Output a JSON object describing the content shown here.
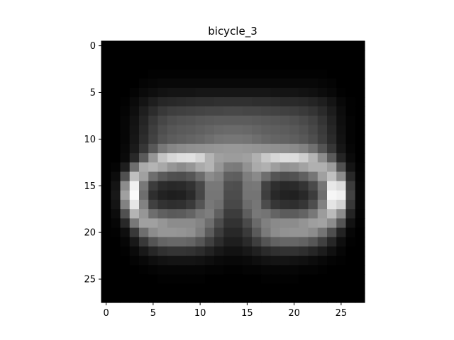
{
  "chart_data": {
    "type": "heatmap",
    "title": "bicycle_3",
    "xlabel": "",
    "ylabel": "",
    "colormap": "gray",
    "value_range": [
      0,
      255
    ],
    "rows": 28,
    "cols": 28,
    "xlim": [
      -0.5,
      27.5
    ],
    "ylim": [
      27.5,
      -0.5
    ],
    "xticks": [
      0,
      5,
      10,
      15,
      20,
      25
    ],
    "yticks": [
      0,
      5,
      10,
      15,
      20,
      25
    ],
    "grid": false,
    "values": [
      [
        0,
        0,
        0,
        0,
        0,
        0,
        0,
        0,
        0,
        0,
        0,
        0,
        0,
        0,
        0,
        0,
        0,
        0,
        0,
        0,
        0,
        0,
        0,
        0,
        0,
        0,
        0,
        0
      ],
      [
        0,
        0,
        0,
        0,
        0,
        0,
        0,
        0,
        0,
        0,
        0,
        0,
        0,
        0,
        0,
        0,
        0,
        0,
        0,
        0,
        0,
        0,
        0,
        0,
        0,
        0,
        0,
        0
      ],
      [
        0,
        0,
        0,
        0,
        0,
        0,
        0,
        0,
        0,
        0,
        0,
        0,
        0,
        0,
        0,
        0,
        0,
        0,
        0,
        0,
        0,
        0,
        0,
        0,
        0,
        0,
        0,
        0
      ],
      [
        0,
        0,
        0,
        0,
        0,
        2,
        2,
        2,
        2,
        2,
        2,
        2,
        2,
        2,
        2,
        2,
        2,
        2,
        2,
        2,
        2,
        2,
        2,
        2,
        0,
        0,
        0,
        0
      ],
      [
        0,
        0,
        0,
        0,
        4,
        6,
        8,
        8,
        8,
        8,
        8,
        8,
        8,
        8,
        8,
        8,
        8,
        8,
        8,
        8,
        8,
        8,
        8,
        6,
        4,
        0,
        0,
        0
      ],
      [
        0,
        0,
        0,
        4,
        10,
        14,
        18,
        20,
        20,
        20,
        22,
        22,
        22,
        22,
        22,
        22,
        22,
        22,
        20,
        20,
        20,
        18,
        16,
        12,
        8,
        2,
        0,
        0
      ],
      [
        0,
        0,
        2,
        10,
        20,
        30,
        38,
        40,
        42,
        44,
        46,
        46,
        48,
        48,
        48,
        48,
        46,
        46,
        44,
        42,
        42,
        40,
        36,
        30,
        20,
        8,
        2,
        0
      ],
      [
        0,
        0,
        4,
        14,
        30,
        44,
        56,
        62,
        64,
        66,
        68,
        70,
        70,
        72,
        72,
        70,
        70,
        68,
        66,
        64,
        62,
        58,
        52,
        42,
        28,
        12,
        2,
        0
      ],
      [
        0,
        0,
        6,
        18,
        36,
        56,
        70,
        78,
        82,
        84,
        88,
        90,
        92,
        92,
        92,
        92,
        90,
        88,
        86,
        84,
        80,
        74,
        66,
        52,
        34,
        14,
        4,
        0
      ],
      [
        0,
        0,
        6,
        20,
        40,
        62,
        78,
        86,
        90,
        92,
        96,
        100,
        104,
        106,
        106,
        104,
        100,
        96,
        94,
        92,
        88,
        82,
        72,
        58,
        38,
        16,
        4,
        0
      ],
      [
        0,
        0,
        6,
        22,
        44,
        66,
        84,
        92,
        96,
        100,
        104,
        110,
        116,
        118,
        118,
        116,
        110,
        104,
        100,
        98,
        94,
        88,
        78,
        62,
        42,
        18,
        4,
        0
      ],
      [
        0,
        0,
        8,
        26,
        54,
        88,
        120,
        134,
        140,
        144,
        146,
        148,
        150,
        152,
        152,
        150,
        148,
        146,
        144,
        142,
        138,
        130,
        112,
        84,
        54,
        22,
        6,
        0
      ],
      [
        0,
        0,
        10,
        40,
        90,
        150,
        196,
        214,
        222,
        224,
        212,
        180,
        160,
        156,
        156,
        160,
        176,
        200,
        214,
        222,
        220,
        206,
        180,
        140,
        90,
        36,
        10,
        0
      ],
      [
        0,
        4,
        30,
        110,
        170,
        180,
        168,
        150,
        140,
        150,
        170,
        180,
        150,
        124,
        122,
        146,
        170,
        176,
        158,
        146,
        150,
        162,
        176,
        176,
        156,
        80,
        20,
        2
      ],
      [
        0,
        12,
        80,
        190,
        160,
        110,
        90,
        80,
        78,
        86,
        108,
        140,
        130,
        96,
        94,
        126,
        138,
        110,
        84,
        78,
        82,
        96,
        118,
        160,
        192,
        140,
        40,
        4
      ],
      [
        0,
        20,
        140,
        240,
        120,
        60,
        44,
        40,
        42,
        50,
        72,
        120,
        120,
        80,
        78,
        118,
        120,
        66,
        46,
        40,
        42,
        52,
        74,
        118,
        232,
        220,
        60,
        6
      ],
      [
        0,
        24,
        160,
        250,
        110,
        46,
        34,
        30,
        32,
        42,
        70,
        118,
        118,
        76,
        76,
        116,
        116,
        62,
        40,
        34,
        32,
        40,
        60,
        110,
        246,
        240,
        66,
        6
      ],
      [
        0,
        20,
        130,
        230,
        130,
        64,
        50,
        46,
        48,
        58,
        84,
        120,
        112,
        72,
        72,
        108,
        118,
        76,
        54,
        48,
        46,
        54,
        78,
        130,
        228,
        210,
        56,
        6
      ],
      [
        0,
        12,
        80,
        180,
        150,
        110,
        96,
        90,
        92,
        100,
        118,
        126,
        96,
        60,
        60,
        94,
        120,
        116,
        100,
        92,
        92,
        100,
        120,
        156,
        186,
        140,
        36,
        4
      ],
      [
        0,
        6,
        40,
        120,
        160,
        160,
        150,
        140,
        140,
        140,
        132,
        110,
        76,
        50,
        50,
        74,
        106,
        128,
        138,
        140,
        140,
        148,
        158,
        162,
        140,
        84,
        18,
        2
      ],
      [
        0,
        2,
        14,
        56,
        110,
        140,
        150,
        150,
        148,
        144,
        126,
        92,
        60,
        40,
        40,
        58,
        90,
        122,
        140,
        146,
        148,
        148,
        140,
        116,
        78,
        34,
        6,
        0
      ],
      [
        0,
        0,
        6,
        24,
        56,
        84,
        100,
        104,
        104,
        100,
        86,
        64,
        44,
        30,
        30,
        42,
        62,
        84,
        98,
        102,
        102,
        98,
        86,
        64,
        38,
        14,
        2,
        0
      ],
      [
        0,
        0,
        2,
        10,
        24,
        38,
        48,
        52,
        52,
        50,
        44,
        34,
        24,
        18,
        18,
        24,
        32,
        42,
        48,
        50,
        50,
        46,
        38,
        28,
        16,
        6,
        0,
        0
      ],
      [
        0,
        0,
        0,
        4,
        8,
        14,
        18,
        20,
        20,
        20,
        18,
        14,
        10,
        8,
        8,
        10,
        14,
        18,
        20,
        20,
        18,
        16,
        12,
        8,
        4,
        2,
        0,
        0
      ],
      [
        0,
        0,
        0,
        0,
        2,
        4,
        6,
        6,
        6,
        6,
        6,
        4,
        4,
        2,
        2,
        4,
        4,
        6,
        6,
        6,
        6,
        4,
        4,
        2,
        0,
        0,
        0,
        0
      ],
      [
        0,
        0,
        0,
        0,
        0,
        0,
        2,
        2,
        2,
        2,
        2,
        0,
        0,
        0,
        0,
        0,
        0,
        2,
        2,
        2,
        2,
        0,
        0,
        0,
        0,
        0,
        0,
        0
      ],
      [
        0,
        0,
        0,
        0,
        0,
        0,
        0,
        0,
        0,
        0,
        0,
        0,
        0,
        0,
        0,
        0,
        0,
        0,
        0,
        0,
        0,
        0,
        0,
        0,
        0,
        0,
        0,
        0
      ],
      [
        0,
        0,
        0,
        0,
        0,
        0,
        0,
        0,
        0,
        0,
        0,
        0,
        0,
        0,
        0,
        0,
        0,
        0,
        0,
        0,
        0,
        0,
        0,
        0,
        0,
        0,
        0,
        0
      ]
    ]
  }
}
